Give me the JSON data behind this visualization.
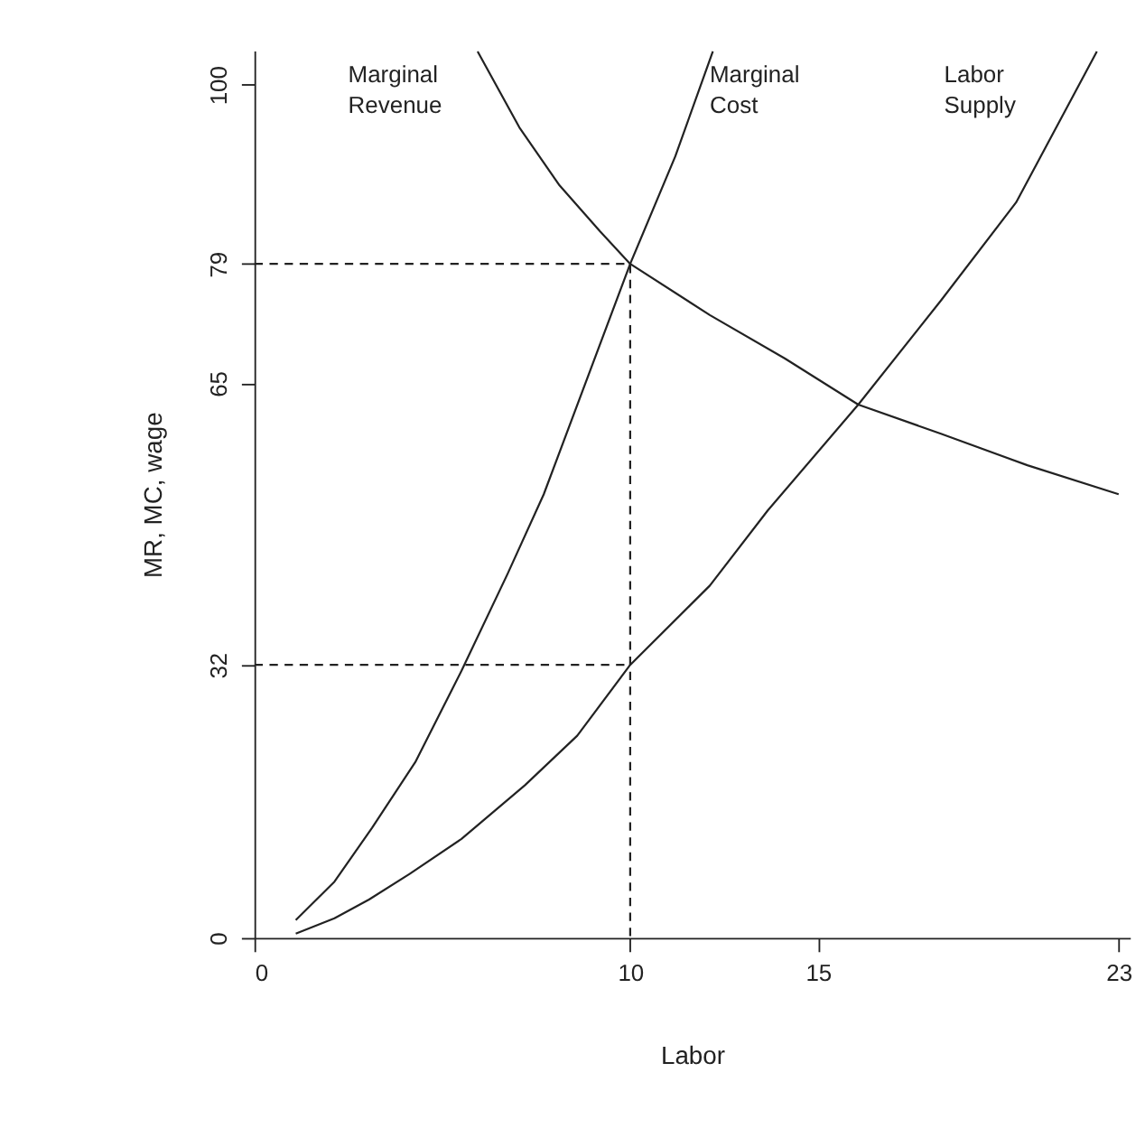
{
  "chart_data": {
    "type": "line",
    "xlabel": "Labor",
    "ylabel": "MR, MC, wage",
    "xlim": [
      0,
      23.3
    ],
    "ylim": [
      0,
      104
    ],
    "xticks": [
      0,
      10,
      15,
      23
    ],
    "yticks": [
      0,
      32,
      65,
      79,
      100
    ],
    "grid": false,
    "marker": "none",
    "series": [
      {
        "color": "#222222",
        "line_style": "solid",
        "x": [
          5.94,
          7.05,
          8.12,
          9.2,
          10,
          12.12,
          14.12,
          16.07,
          18.27,
          20.57,
          23
        ],
        "values": [
          103.9,
          95,
          88.2,
          82.8,
          79,
          73,
          67.9,
          62.5,
          59.1,
          55.4,
          52
        ]
      },
      {
        "color": "#222222",
        "line_style": "solid",
        "x": [
          1.1,
          2.13,
          3.13,
          4.28,
          5.51,
          6.74,
          7.7,
          10,
          11.2,
          12.2
        ],
        "values": [
          2.1,
          6.6,
          12.9,
          20.6,
          31.3,
          42.7,
          52,
          79,
          91.6,
          103.9
        ]
      },
      {
        "color": "#222222",
        "line_style": "solid",
        "x": [
          1.1,
          2.13,
          3.05,
          4.13,
          5.51,
          7.2,
          8.59,
          10,
          12.12,
          13.66,
          16.07,
          18.27,
          20.27,
          22.42
        ],
        "values": [
          0.5,
          2.3,
          4.5,
          7.5,
          11.6,
          17.9,
          23.7,
          32,
          41.3,
          50.1,
          62.5,
          74.7,
          86.2,
          103.9
        ]
      },
      {
        "color": "#222222",
        "line_style": "dashed",
        "x": [
          0,
          10,
          10
        ],
        "values": [
          79,
          79,
          0
        ]
      },
      {
        "color": "#222222",
        "line_style": "dashed",
        "x": [
          0,
          10
        ],
        "values": [
          32,
          32
        ]
      }
    ],
    "annotations": [
      "Marginal\nRevenue",
      "Marginal\nCost",
      "Labor\nSupply"
    ]
  }
}
